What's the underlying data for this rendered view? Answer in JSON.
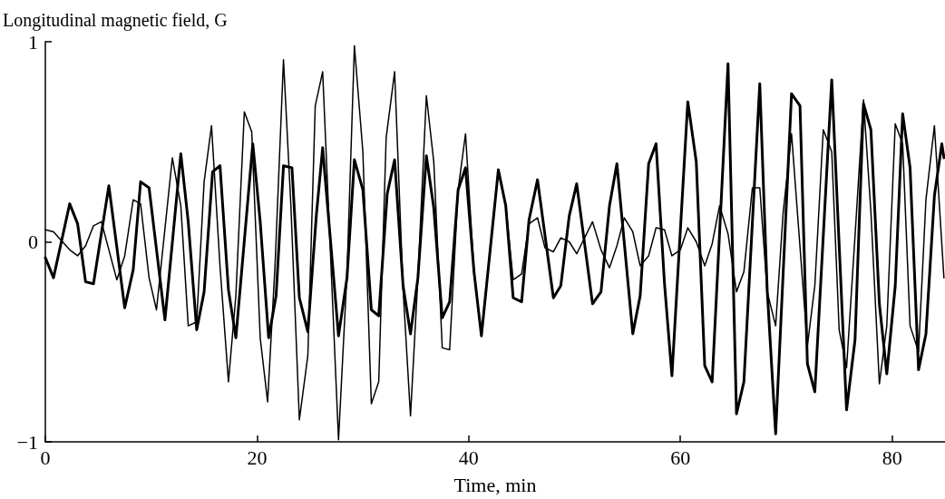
{
  "chart_data": {
    "type": "line",
    "xlabel": "Time, min",
    "ylabel": "Longitudinal magnetic field, G",
    "xlim": [
      0,
      85
    ],
    "xticks": [
      0,
      20,
      40,
      60,
      80
    ],
    "ylim": [
      -1,
      1
    ],
    "yticks": [
      {
        "value": -1,
        "label": "−1"
      },
      0,
      1
    ],
    "grid": false,
    "marker": "none",
    "line_style": "solid",
    "series": [
      {
        "color": "#000000",
        "x": [
          0,
          0.77,
          2.3,
          3.05,
          3.8,
          4.55,
          6.0,
          7.5,
          8.3,
          9.0,
          9.8,
          11.3,
          12.8,
          13.5,
          14.3,
          15.0,
          15.8,
          16.5,
          17.3,
          18.0,
          19.6,
          20.3,
          21.1,
          21.8,
          22.5,
          23.3,
          24.0,
          24.8,
          25.6,
          26.2,
          27.7,
          28.5,
          29.2,
          30.0,
          30.8,
          31.5,
          32.3,
          33.0,
          33.8,
          34.5,
          35.2,
          36.0,
          36.7,
          37.5,
          38.2,
          39.0,
          39.7,
          40.5,
          41.2,
          42.8,
          43.5,
          44.2,
          45.0,
          45.7,
          46.5,
          48.0,
          48.7,
          49.5,
          50.2,
          51.7,
          52.5,
          53.3,
          54.0,
          55.5,
          56.2,
          57.0,
          57.7,
          58.5,
          59.2,
          60.7,
          61.5,
          62.3,
          63.0,
          64.5,
          65.3,
          66.0,
          67.5,
          68.2,
          69.0,
          70.5,
          71.3,
          72.0,
          72.7,
          74.3,
          75.7,
          76.5,
          77.3,
          78.0,
          78.8,
          79.5,
          80.3,
          81.0,
          81.7,
          82.5,
          83.2,
          84.0,
          84.7,
          84.9
        ],
        "values": [
          -0.08,
          -0.18,
          0.19,
          0.09,
          -0.2,
          -0.21,
          0.28,
          -0.33,
          -0.14,
          0.3,
          0.27,
          -0.39,
          0.44,
          0.1,
          -0.44,
          -0.25,
          0.35,
          0.38,
          -0.24,
          -0.48,
          0.49,
          0.1,
          -0.48,
          -0.27,
          0.38,
          0.37,
          -0.28,
          -0.45,
          0.13,
          0.47,
          -0.47,
          -0.18,
          0.41,
          0.26,
          -0.34,
          -0.37,
          0.24,
          0.41,
          -0.22,
          -0.46,
          -0.18,
          0.43,
          0.17,
          -0.38,
          -0.3,
          0.26,
          0.37,
          -0.15,
          -0.47,
          0.36,
          0.18,
          -0.28,
          -0.3,
          0.11,
          0.31,
          -0.28,
          -0.22,
          0.13,
          0.29,
          -0.31,
          -0.25,
          0.18,
          0.39,
          -0.46,
          -0.27,
          0.39,
          0.49,
          -0.21,
          -0.67,
          0.7,
          0.4,
          -0.62,
          -0.7,
          0.89,
          -0.86,
          -0.7,
          0.79,
          -0.24,
          -0.96,
          0.74,
          0.68,
          -0.61,
          -0.75,
          0.81,
          -0.84,
          -0.49,
          0.69,
          0.56,
          -0.31,
          -0.66,
          -0.22,
          0.64,
          0.37,
          -0.64,
          -0.46,
          0.23,
          0.49,
          0.42
        ]
      },
      {
        "color": "#000000",
        "x": [
          0,
          0.77,
          2.3,
          3.05,
          3.8,
          4.55,
          5.3,
          6.75,
          7.5,
          8.3,
          9.0,
          9.8,
          10.5,
          12.0,
          12.8,
          13.5,
          14.3,
          15.0,
          15.7,
          16.5,
          17.3,
          18.0,
          18.8,
          19.5,
          20.3,
          21.0,
          21.7,
          22.5,
          23.2,
          24.0,
          24.8,
          25.5,
          26.2,
          27.7,
          28.5,
          29.2,
          30.0,
          30.8,
          31.5,
          32.2,
          33.0,
          33.8,
          34.5,
          35.2,
          36.0,
          36.7,
          37.5,
          38.2,
          39.0,
          39.7,
          40.5,
          41.2,
          42.8,
          43.5,
          44.2,
          45.0,
          45.7,
          46.5,
          47.2,
          48.0,
          48.7,
          49.5,
          50.2,
          51.7,
          52.5,
          53.3,
          54.0,
          54.7,
          55.5,
          56.2,
          57.0,
          57.7,
          58.5,
          59.2,
          60.0,
          60.7,
          61.5,
          62.3,
          63.0,
          63.7,
          64.5,
          65.3,
          66.0,
          66.8,
          67.5,
          68.2,
          69.0,
          69.7,
          70.5,
          72.0,
          72.7,
          73.5,
          74.3,
          75.0,
          75.7,
          76.5,
          77.3,
          78.0,
          78.8,
          79.5,
          80.3,
          81.0,
          81.7,
          82.5,
          83.2,
          84.0,
          84.9
        ],
        "values": [
          0.06,
          0.05,
          -0.04,
          -0.07,
          -0.02,
          0.08,
          0.1,
          -0.19,
          -0.07,
          0.21,
          0.19,
          -0.18,
          -0.34,
          0.42,
          0.18,
          -0.42,
          -0.4,
          0.3,
          0.58,
          -0.12,
          -0.7,
          -0.27,
          0.65,
          0.55,
          -0.48,
          -0.8,
          -0.12,
          0.91,
          0.18,
          -0.89,
          -0.57,
          0.68,
          0.85,
          -0.99,
          -0.16,
          0.98,
          0.45,
          -0.81,
          -0.7,
          0.52,
          0.85,
          -0.24,
          -0.87,
          -0.18,
          0.73,
          0.4,
          -0.53,
          -0.54,
          0.26,
          0.54,
          -0.15,
          -0.47,
          0.36,
          0.18,
          -0.19,
          -0.16,
          0.09,
          0.12,
          -0.03,
          -0.05,
          0.02,
          0,
          -0.06,
          0.1,
          -0.04,
          -0.13,
          -0.02,
          0.12,
          0.05,
          -0.12,
          -0.07,
          0.07,
          0.06,
          -0.07,
          -0.04,
          0.07,
          0,
          -0.12,
          -0.01,
          0.18,
          0.04,
          -0.25,
          -0.15,
          0.27,
          0.27,
          -0.25,
          -0.42,
          0.14,
          0.54,
          -0.52,
          -0.22,
          0.56,
          0.45,
          -0.44,
          -0.63,
          0.03,
          0.71,
          0.15,
          -0.71,
          -0.42,
          0.59,
          0.49,
          -0.42,
          -0.55,
          0.21,
          0.58,
          -0.18
        ]
      }
    ]
  }
}
